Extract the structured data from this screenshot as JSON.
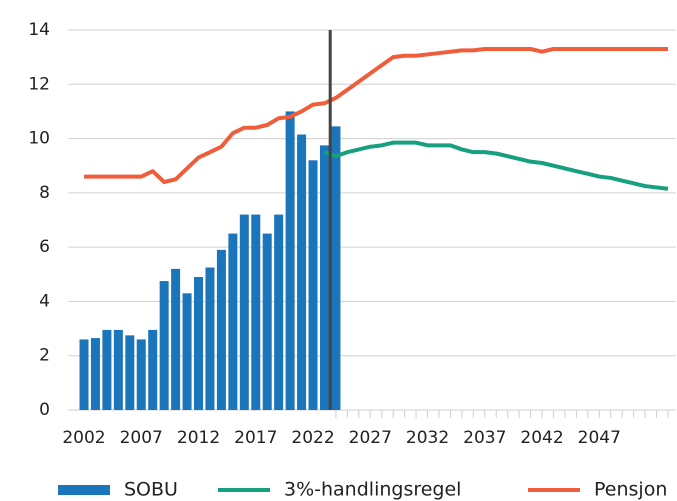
{
  "chart_data": {
    "type": "combo",
    "x": [
      2002,
      2003,
      2004,
      2005,
      2006,
      2007,
      2008,
      2009,
      2010,
      2011,
      2012,
      2013,
      2014,
      2015,
      2016,
      2017,
      2018,
      2019,
      2020,
      2021,
      2022,
      2023,
      2024,
      2025,
      2026,
      2027,
      2028,
      2029,
      2030,
      2031,
      2032,
      2033,
      2034,
      2035,
      2036,
      2037,
      2038,
      2039,
      2040,
      2041,
      2042,
      2043,
      2044,
      2045,
      2046,
      2047,
      2048,
      2049,
      2050,
      2051,
      2052,
      2053
    ],
    "series": [
      {
        "name": "SOBU",
        "type": "bar",
        "color": "#1b75bb",
        "values": [
          2.6,
          2.65,
          2.95,
          2.95,
          2.75,
          2.6,
          2.95,
          4.75,
          5.2,
          4.3,
          4.9,
          5.25,
          5.9,
          6.5,
          7.2,
          7.2,
          6.5,
          7.2,
          11.0,
          10.15,
          9.2,
          9.75,
          10.45,
          null,
          null,
          null,
          null,
          null,
          null,
          null,
          null,
          null,
          null,
          null,
          null,
          null,
          null,
          null,
          null,
          null,
          null,
          null,
          null,
          null,
          null,
          null,
          null,
          null,
          null,
          null,
          null,
          null
        ]
      },
      {
        "name": "3%-handlingsregel",
        "type": "line",
        "color": "#17a07f",
        "values": [
          null,
          null,
          null,
          null,
          null,
          null,
          null,
          null,
          null,
          null,
          null,
          null,
          null,
          null,
          null,
          null,
          null,
          null,
          null,
          null,
          null,
          9.5,
          9.35,
          9.5,
          9.6,
          9.7,
          9.75,
          9.85,
          9.85,
          9.85,
          9.75,
          9.75,
          9.75,
          9.6,
          9.5,
          9.5,
          9.45,
          9.35,
          9.25,
          9.15,
          9.1,
          9.0,
          8.9,
          8.8,
          8.7,
          8.6,
          8.55,
          8.45,
          8.35,
          8.25,
          8.2,
          8.15
        ]
      },
      {
        "name": "Pensjon",
        "type": "line",
        "color": "#ef5d3b",
        "values": [
          8.6,
          8.6,
          8.6,
          8.6,
          8.6,
          8.6,
          8.8,
          8.4,
          8.5,
          8.9,
          9.3,
          9.5,
          9.7,
          10.2,
          10.4,
          10.4,
          10.5,
          10.75,
          10.8,
          11.0,
          11.25,
          11.3,
          11.5,
          11.8,
          12.1,
          12.4,
          12.7,
          13.0,
          13.05,
          13.05,
          13.1,
          13.15,
          13.2,
          13.25,
          13.25,
          13.3,
          13.3,
          13.3,
          13.3,
          13.3,
          13.2,
          13.3,
          13.3,
          13.3,
          13.3,
          13.3,
          13.3,
          13.3,
          13.3,
          13.3,
          13.3,
          13.3
        ]
      }
    ],
    "vertical_line": 2023.5,
    "xlim": [
      2000.6,
      2054.4
    ],
    "xticks": [
      2002,
      2007,
      2012,
      2017,
      2022,
      2027,
      2032,
      2037,
      2042,
      2047
    ],
    "ylim": [
      0,
      14
    ],
    "yticks": [
      0,
      2,
      4,
      6,
      8,
      10,
      12,
      14
    ],
    "grid": true
  }
}
